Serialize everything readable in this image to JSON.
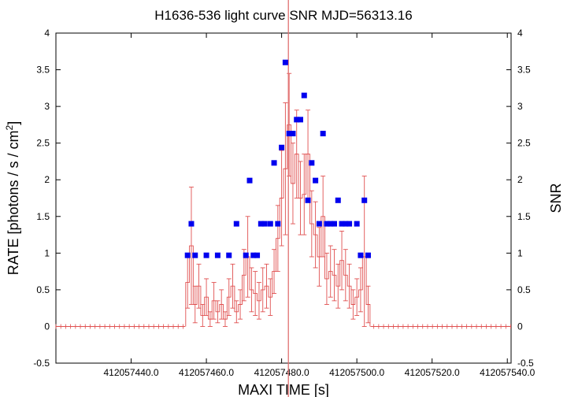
{
  "chart_data": {
    "type": "scatter",
    "title": "H1636-536 light curve  SNR MJD=56313.16",
    "xlabel": "MAXI TIME [s]",
    "ylabel_main": "RATE [photons / s / cm",
    "ylabel_sup": "2",
    "ylabel_end": "]",
    "y2label": "SNR",
    "xlim": [
      412057420.0,
      412057541.0
    ],
    "ylim": [
      -0.5,
      4.0
    ],
    "y2lim": [
      -0.5,
      4.0
    ],
    "x_ticks": [
      412057440.0,
      412057460.0,
      412057480.0,
      412057500.0,
      412057520.0,
      412057540.0
    ],
    "x_tick_labels": [
      "412057440.0",
      "412057460.0",
      "412057480.0",
      "412057500.0",
      "412057520.0",
      "412057540.0"
    ],
    "y_ticks": [
      -0.5,
      0,
      0.5,
      1,
      1.5,
      2,
      2.5,
      3,
      3.5,
      4
    ],
    "y_tick_labels": [
      "-0.5",
      "0",
      "0.5",
      "1",
      "1.5",
      "2",
      "2.5",
      "3",
      "3.5",
      "4"
    ],
    "vertical_marker_x": 412057481.8,
    "colors": {
      "rate": "#e05050",
      "snr": "#0000ee",
      "marker": "#e07070"
    },
    "series": [
      {
        "kind": "rate",
        "x": [
          412057455.0,
          412057456.0,
          412057457.0,
          412057458.0,
          412057459.0,
          412057460.0,
          412057461.0,
          412057462.0,
          412057463.0,
          412057464.0,
          412057465.0,
          412057466.0,
          412057467.0,
          412057468.0,
          412057469.0,
          412057470.0,
          412057471.0,
          412057472.0,
          412057473.0,
          412057474.0,
          412057475.0,
          412057476.0,
          412057477.0,
          412057478.0,
          412057479.0,
          412057480.0,
          412057481.0,
          412057482.0,
          412057483.0,
          412057484.0,
          412057485.0,
          412057486.0,
          412057487.0,
          412057488.0,
          412057489.0,
          412057490.0,
          412057491.0,
          412057492.0,
          412057493.0,
          412057494.0,
          412057495.0,
          412057496.0,
          412057497.0,
          412057498.0,
          412057499.0,
          412057500.0,
          412057501.0,
          412057502.0,
          412057503.0
        ],
        "y": [
          0.6,
          1.1,
          0.3,
          0.55,
          0.15,
          0.4,
          0.1,
          0.35,
          0.2,
          0.3,
          0.1,
          0.4,
          0.55,
          0.2,
          0.3,
          0.7,
          0.95,
          0.5,
          0.45,
          0.35,
          0.5,
          0.55,
          0.4,
          0.75,
          1.2,
          1.75,
          2.15,
          2.75,
          1.95,
          2.35,
          1.75,
          1.8,
          2.35,
          1.4,
          1.25,
          0.95,
          1.5,
          0.65,
          0.75,
          0.7,
          0.55,
          0.9,
          0.7,
          0.55,
          0.3,
          0.4,
          0.5,
          0.95,
          0.3
        ],
        "err": [
          0.35,
          0.8,
          0.25,
          0.3,
          0.15,
          0.25,
          0.1,
          0.25,
          0.15,
          0.2,
          0.1,
          0.25,
          0.3,
          0.15,
          0.2,
          0.35,
          0.55,
          0.3,
          0.3,
          0.25,
          0.3,
          0.3,
          0.25,
          0.3,
          0.45,
          0.65,
          0.9,
          0.7,
          0.55,
          0.6,
          0.5,
          0.55,
          0.6,
          0.45,
          0.45,
          0.4,
          0.55,
          0.35,
          0.35,
          0.35,
          0.3,
          0.4,
          0.35,
          0.3,
          0.2,
          0.25,
          0.3,
          1.1,
          0.25
        ]
      },
      {
        "kind": "snr",
        "x": [
          412057455.0,
          412057456.0,
          412057457.0,
          412057460.0,
          412057463.0,
          412057466.0,
          412057468.0,
          412057470.5,
          412057471.5,
          412057472.5,
          412057473.5,
          412057474.5,
          412057475.5,
          412057477.0,
          412057478.0,
          412057479.0,
          412057480.0,
          412057481.0,
          412057482.0,
          412057483.0,
          412057484.0,
          412057485.0,
          412057486.0,
          412057487.0,
          412057488.0,
          412057489.0,
          412057490.0,
          412057491.0,
          412057492.0,
          412057493.0,
          412057494.0,
          412057495.0,
          412057496.0,
          412057497.0,
          412057498.0,
          412057500.0,
          412057501.0,
          412057502.0,
          412057503.0
        ],
        "y": [
          0.97,
          1.4,
          0.97,
          0.97,
          0.97,
          0.97,
          1.4,
          0.97,
          1.99,
          0.97,
          0.97,
          1.4,
          1.4,
          1.4,
          2.23,
          1.4,
          2.44,
          3.6,
          2.63,
          2.63,
          2.82,
          2.82,
          3.15,
          1.72,
          2.23,
          1.99,
          1.4,
          2.63,
          1.4,
          1.4,
          1.4,
          1.72,
          1.4,
          1.4,
          1.4,
          1.4,
          0.97,
          1.72,
          0.97
        ]
      }
    ]
  }
}
